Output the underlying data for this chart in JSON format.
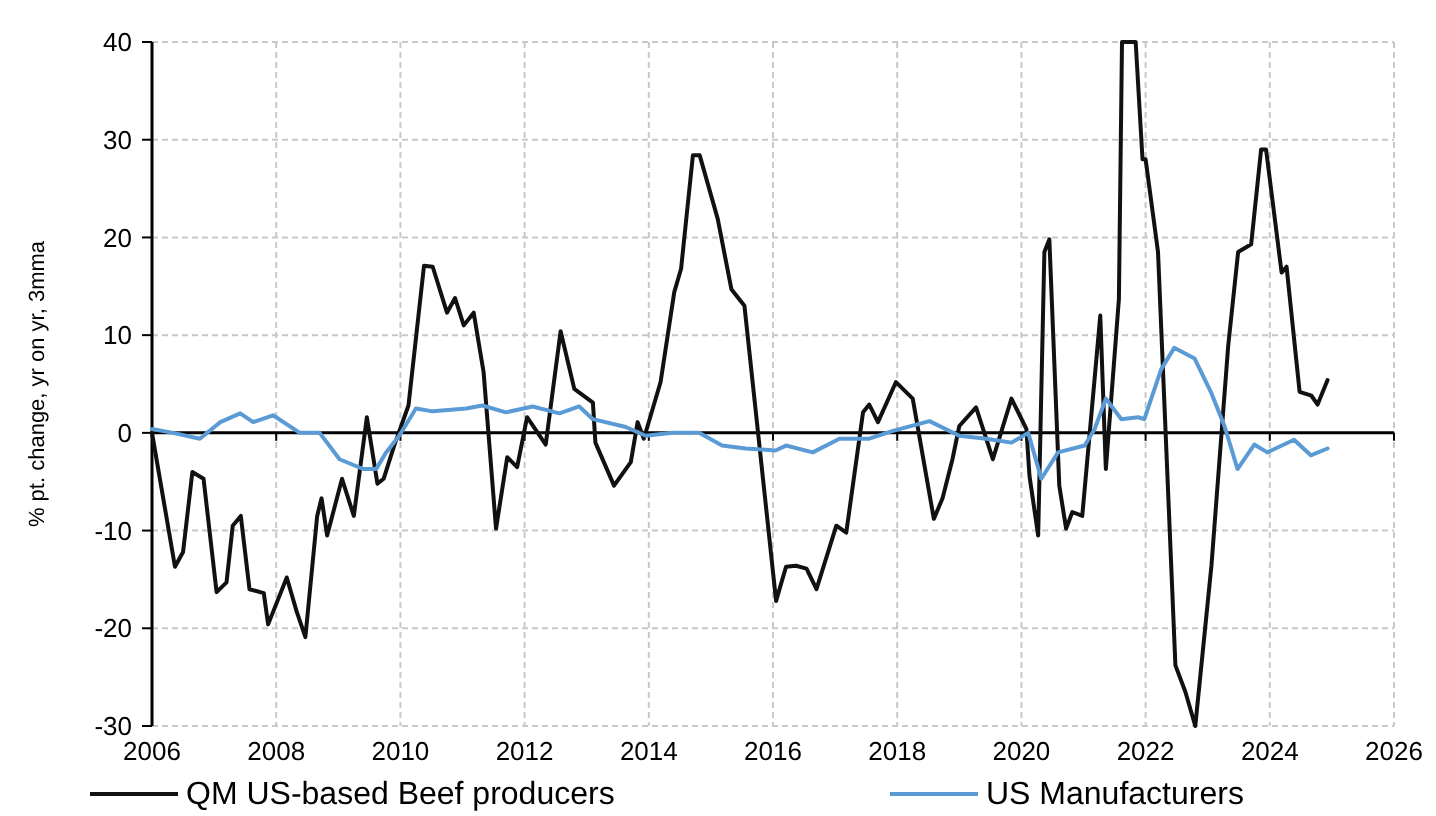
{
  "chart_data": {
    "type": "line",
    "ylabel": "% pt. change, yr on yr, 3mma",
    "xlim": [
      2006,
      2026
    ],
    "xticks": [
      2006,
      2008,
      2010,
      2012,
      2014,
      2016,
      2018,
      2020,
      2022,
      2024,
      2026
    ],
    "ylim": [
      -30,
      40
    ],
    "yticks": [
      -30,
      -20,
      -10,
      0,
      10,
      20,
      30,
      40
    ],
    "grid": true,
    "legend": "bottom",
    "line_style": "solid",
    "marker": "none",
    "series": [
      {
        "name": "QM US-based Beef producers",
        "color": "#111111",
        "x": [
          2006.0,
          2006.37,
          2006.5,
          2006.65,
          2006.83,
          2007.04,
          2007.2,
          2007.3,
          2007.43,
          2007.57,
          2007.8,
          2007.87,
          2008.17,
          2008.33,
          2008.47,
          2008.66,
          2008.73,
          2008.82,
          2009.06,
          2009.25,
          2009.46,
          2009.63,
          2009.73,
          2009.9,
          2010.13,
          2010.38,
          2010.52,
          2010.75,
          2010.88,
          2011.02,
          2011.18,
          2011.34,
          2011.54,
          2011.72,
          2011.88,
          2012.04,
          2012.34,
          2012.58,
          2012.8,
          2013.1,
          2013.14,
          2013.44,
          2013.71,
          2013.82,
          2013.92,
          2014.19,
          2014.41,
          2014.52,
          2014.71,
          2014.82,
          2015.11,
          2015.33,
          2015.54,
          2016.05,
          2016.21,
          2016.37,
          2016.54,
          2016.7,
          2017.02,
          2017.18,
          2017.45,
          2017.55,
          2017.69,
          2017.98,
          2018.25,
          2018.59,
          2018.73,
          2018.89,
          2019.0,
          2019.27,
          2019.54,
          2019.84,
          2020.08,
          2020.13,
          2020.27,
          2020.37,
          2020.45,
          2020.61,
          2020.72,
          2020.82,
          2020.98,
          2021.14,
          2021.27,
          2021.36,
          2021.57,
          2021.62,
          2021.84,
          2021.95,
          2022.0,
          2022.2,
          2022.48,
          2022.64,
          2022.8,
          2023.06,
          2023.33,
          2023.49,
          2023.7,
          2023.86,
          2023.94,
          2024.19,
          2024.27,
          2024.48,
          2024.67,
          2024.77,
          2024.93
        ],
        "values": [
          0,
          -13.7,
          -12.2,
          -4,
          -4.7,
          -16.3,
          -15.3,
          -9.5,
          -8.5,
          -16,
          -16.4,
          -19.6,
          -14.8,
          -18.3,
          -20.9,
          -8.5,
          -6.7,
          -10.5,
          -4.7,
          -8.5,
          1.6,
          -5.2,
          -4.7,
          -1.3,
          2.8,
          17.1,
          17,
          12.3,
          13.8,
          11,
          12.3,
          6.2,
          -9.8,
          -2.5,
          -3.5,
          1.6,
          -1.2,
          10.4,
          4.5,
          3.1,
          -1,
          -5.4,
          -3,
          1.1,
          -0.6,
          5.2,
          14.4,
          16.8,
          28.4,
          28.4,
          21.9,
          14.7,
          13,
          -17.2,
          -13.7,
          -13.6,
          -13.9,
          -16,
          -9.5,
          -10.2,
          2.1,
          2.9,
          1.1,
          5.2,
          3.5,
          -8.8,
          -6.7,
          -2.7,
          0.7,
          2.6,
          -2.7,
          3.5,
          0.4,
          -4.4,
          -10.5,
          18.5,
          19.8,
          -5.4,
          -9.8,
          -8.1,
          -8.5,
          2.8,
          12,
          -3.7,
          13.7,
          40,
          40,
          28,
          28,
          18.5,
          -23.8,
          -26.5,
          -30,
          -13.6,
          8.9,
          18.5,
          19.3,
          29,
          29,
          16.4,
          17,
          4.2,
          3.8,
          2.9,
          5.4
        ]
      },
      {
        "name": "US Manufacturers",
        "color": "#5b9bd5",
        "x": [
          2006.0,
          2006.34,
          2006.77,
          2007.1,
          2007.42,
          2007.63,
          2007.95,
          2008.38,
          2008.7,
          2009.02,
          2009.4,
          2009.61,
          2009.77,
          2009.98,
          2010.25,
          2010.52,
          2011.06,
          2011.32,
          2011.7,
          2012.13,
          2012.56,
          2012.88,
          2013.1,
          2013.63,
          2013.95,
          2014.38,
          2014.81,
          2015.18,
          2015.56,
          2016.04,
          2016.21,
          2016.64,
          2017.07,
          2017.55,
          2017.93,
          2018.52,
          2019.0,
          2019.43,
          2019.84,
          2020.11,
          2020.32,
          2020.59,
          2021.02,
          2021.18,
          2021.36,
          2021.61,
          2021.88,
          2021.98,
          2022.25,
          2022.46,
          2022.79,
          2023.05,
          2023.27,
          2023.48,
          2023.75,
          2023.96,
          2024.39,
          2024.66,
          2024.93
        ],
        "values": [
          0.4,
          0,
          -0.6,
          1.1,
          2,
          1.1,
          1.8,
          0,
          0,
          -2.7,
          -3.7,
          -3.7,
          -2,
          -0.3,
          2.5,
          2.2,
          2.5,
          2.8,
          2.1,
          2.7,
          2,
          2.7,
          1.4,
          0.6,
          -0.3,
          0,
          0,
          -1.3,
          -1.6,
          -1.8,
          -1.3,
          -2,
          -0.6,
          -0.6,
          0.2,
          1.2,
          -0.3,
          -0.6,
          -1,
          0,
          -4.7,
          -2,
          -1.3,
          0.4,
          3.5,
          1.4,
          1.6,
          1.4,
          6.5,
          8.7,
          7.6,
          4.2,
          0.7,
          -3.7,
          -1.2,
          -2,
          -0.7,
          -2.3,
          -1.6
        ]
      }
    ]
  }
}
